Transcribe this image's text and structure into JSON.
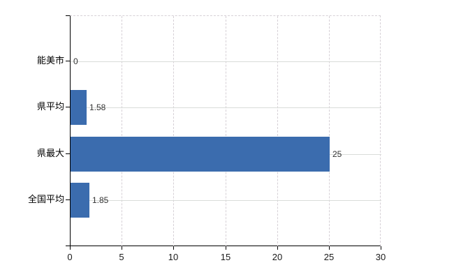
{
  "chart_data": {
    "type": "bar",
    "orientation": "horizontal",
    "title": "",
    "categories": [
      "能美市",
      "県平均",
      "県最大",
      "全国平均"
    ],
    "values": [
      0,
      1.58,
      25,
      1.85
    ],
    "value_labels": [
      "0",
      "1.58",
      "25",
      "1.85"
    ],
    "x_ticks": [
      0,
      5,
      10,
      15,
      20,
      25,
      30
    ],
    "x_tick_labels": [
      "0",
      "5",
      "10",
      "15",
      "20",
      "25",
      "30"
    ],
    "xlim": [
      0,
      30
    ],
    "grid": true,
    "legend_position": "none",
    "bar_color": "#3b6cae",
    "axis_color": "#000000",
    "horizontal_grid_color": "#d9dcd9",
    "vertical_grid_color": "#d6d0d6",
    "value_label_color": "#333333",
    "tick_label_color": "#1a1a1a",
    "category_label_color": "#000000",
    "background_color": "#ffffff"
  }
}
